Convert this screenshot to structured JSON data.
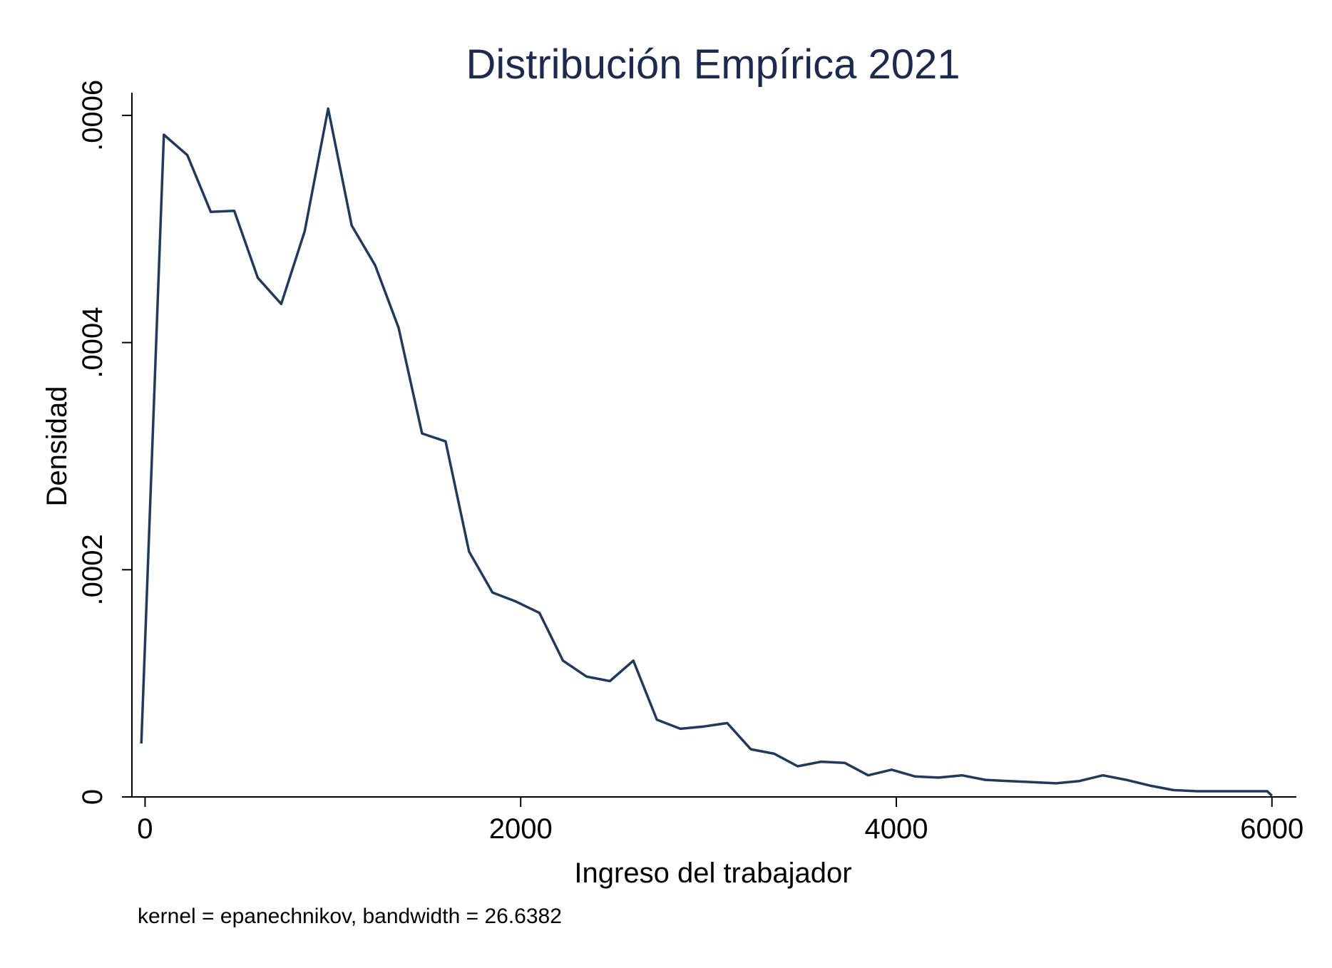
{
  "chart_data": {
    "type": "line",
    "title": "Distribución Empírica 2021",
    "xlabel": "Ingreso del trabajador",
    "ylabel": "Densidad",
    "note": "kernel = epanechnikov, bandwidth = 26.6382",
    "xlim": [
      -70,
      6130
    ],
    "ylim": [
      0,
      0.00062
    ],
    "xticks": [
      {
        "value": 0,
        "label": "0"
      },
      {
        "value": 2000,
        "label": "2000"
      },
      {
        "value": 4000,
        "label": "4000"
      },
      {
        "value": 6000,
        "label": "6000"
      }
    ],
    "yticks": [
      {
        "value": 0,
        "label": "0"
      },
      {
        "value": 0.0002,
        "label": ".0002"
      },
      {
        "value": 0.0004,
        "label": ".0004"
      },
      {
        "value": 0.0006,
        "label": ".0006"
      }
    ],
    "grid": false,
    "line_color": "#1f3a5f",
    "series": [
      {
        "x": [
          -20,
          100,
          225,
          350,
          475,
          600,
          725,
          850,
          975,
          1100,
          1225,
          1350,
          1475,
          1600,
          1725,
          1850,
          1975,
          2100,
          2225,
          2350,
          2475,
          2600,
          2725,
          2850,
          2975,
          3100,
          3225,
          3350,
          3475,
          3600,
          3725,
          3850,
          3975,
          4100,
          4225,
          4350,
          4475,
          4600,
          4725,
          4850,
          4975,
          5100,
          5225,
          5350,
          5475,
          5600,
          5725,
          5850,
          5975,
          6000
        ],
        "y": [
          4.7e-05,
          0.000583,
          0.000565,
          0.000515,
          0.000516,
          0.000457,
          0.000434,
          0.000498,
          0.000606,
          0.000503,
          0.000468,
          0.000413,
          0.00032,
          0.000313,
          0.000216,
          0.00018,
          0.000172,
          0.000162,
          0.00012,
          0.000106,
          0.000102,
          0.00012,
          6.8e-05,
          6e-05,
          6.2e-05,
          6.5e-05,
          4.2e-05,
          3.8e-05,
          2.7e-05,
          3.1e-05,
          3e-05,
          1.9e-05,
          2.4e-05,
          1.8e-05,
          1.7e-05,
          1.9e-05,
          1.5e-05,
          1.4e-05,
          1.3e-05,
          1.2e-05,
          1.4e-05,
          1.9e-05,
          1.5e-05,
          1e-05,
          6e-06,
          5e-06,
          5e-06,
          5e-06,
          5e-06,
          1e-06
        ]
      }
    ]
  }
}
